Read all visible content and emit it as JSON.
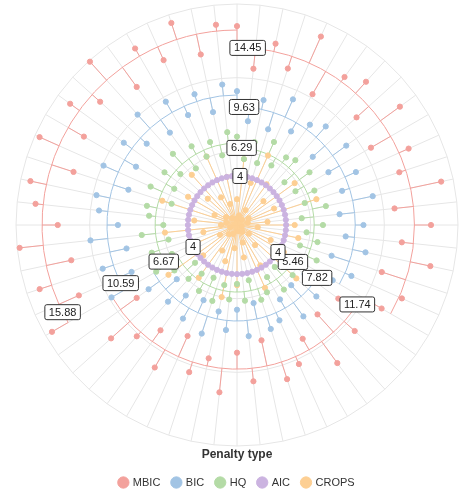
{
  "chart_data": {
    "type": "lollipop",
    "legend_title": "Penalty type",
    "legend": "bottom",
    "grid": true,
    "tick_labels": false,
    "ylim": [
      0,
      18
    ],
    "yticks": [
      0,
      6,
      12,
      18
    ],
    "categories": [
      null,
      null,
      null,
      null,
      null,
      null,
      null,
      null,
      null,
      null,
      null,
      null,
      null,
      null,
      null,
      null,
      null,
      null,
      null,
      null,
      null,
      null,
      null,
      null,
      null,
      null,
      null,
      null,
      null,
      null,
      null,
      null,
      null,
      null,
      null,
      null,
      null,
      null,
      null,
      null,
      null,
      null,
      null,
      null,
      null,
      null,
      null,
      null,
      null,
      null,
      null,
      null,
      null,
      null,
      null,
      null,
      null,
      null,
      null,
      null
    ],
    "series": [
      {
        "name": "MBIC",
        "color": "#f3a19c",
        "baselines": [
          14.45,
          11.74,
          15.88
        ],
        "values": [
          16.2,
          12.8,
          15.1,
          13.4,
          16.8,
          12.3,
          14.9,
          15.7,
          13.1,
          16.4,
          12.6,
          15.3,
          13.9,
          17.0,
          12.9,
          15.8,
          13.5,
          16.1,
          12.4,
          14.7,
          13.6,
          10.2,
          12.9,
          9.8,
          13.9,
          10.7,
          12.4,
          13.2,
          9.6,
          12.8,
          10.4,
          13.7,
          11.1,
          12.6,
          9.9,
          13.4,
          10.6,
          12.2,
          13.8,
          10.1,
          17.4,
          14.1,
          16.9,
          13.8,
          17.8,
          14.6,
          16.5,
          17.2,
          14.0,
          17.6,
          14.4,
          16.8,
          15.0,
          17.9,
          13.9,
          16.6,
          14.7,
          17.3,
          14.2,
          16.4
        ]
      },
      {
        "name": "BIC",
        "color": "#a2c4e4",
        "baselines": [
          9.63,
          7.82,
          10.59
        ],
        "values": [
          10.9,
          8.5,
          10.4,
          8.2,
          11.2,
          8.8,
          10.1,
          10.8,
          8.3,
          11.0,
          8.6,
          10.6,
          9.0,
          11.3,
          8.4,
          10.3,
          8.9,
          10.7,
          8.1,
          10.2,
          9.0,
          6.8,
          8.7,
          6.6,
          9.2,
          7.0,
          8.5,
          8.9,
          6.5,
          9.1,
          6.9,
          8.6,
          7.2,
          9.3,
          6.7,
          8.8,
          7.1,
          8.4,
          6.6,
          8.9,
          11.8,
          9.4,
          11.5,
          9.2,
          12.0,
          9.7,
          11.3,
          11.7,
          9.3,
          11.9,
          9.5,
          11.4,
          9.9,
          12.1,
          9.3,
          11.6,
          9.8,
          11.2,
          9.4,
          11.5
        ]
      },
      {
        "name": "HQ",
        "color": "#b4dba6",
        "baselines": [
          6.29,
          5.46,
          6.67
        ],
        "values": [
          7.2,
          5.4,
          6.9,
          5.3,
          7.4,
          5.6,
          6.8,
          7.1,
          5.2,
          7.3,
          5.5,
          6.9,
          5.8,
          7.4,
          5.3,
          7.0,
          5.7,
          6.7,
          5.4,
          7.1,
          6.3,
          4.7,
          6.1,
          4.6,
          6.5,
          4.9,
          6.0,
          6.4,
          4.6,
          6.2,
          4.8,
          6.1,
          5.0,
          6.5,
          4.7,
          6.2,
          4.9,
          5.9,
          4.6,
          6.3,
          7.6,
          5.8,
          7.3,
          5.7,
          7.8,
          6.0,
          7.2,
          7.5,
          5.6,
          7.7,
          5.9,
          7.3,
          6.2,
          7.8,
          5.7,
          7.4,
          6.1,
          7.1,
          5.8,
          7.6
        ]
      },
      {
        "name": "AIC",
        "color": "#cbb3e0",
        "baselines": [
          4,
          4,
          4
        ],
        "values": [
          4,
          4,
          4,
          4,
          4,
          4,
          4,
          4,
          4,
          4,
          4,
          4,
          4,
          4,
          4,
          4,
          4,
          4,
          4,
          4,
          4,
          4,
          4,
          4,
          4,
          4,
          4,
          4,
          4,
          4,
          4,
          4,
          4,
          4,
          4,
          4,
          4,
          4,
          4,
          4,
          4,
          4,
          4,
          4,
          4,
          4,
          4,
          4,
          4,
          4,
          4,
          4,
          4,
          4,
          4,
          4,
          4,
          4,
          4,
          4
        ]
      },
      {
        "name": "CROPS",
        "color": "#fdcf93",
        "values": [
          2.1,
          5.4,
          0.8,
          3.6,
          6.2,
          1.4,
          4.1,
          0.6,
          2.9,
          5.8,
          1.1,
          3.3,
          6.8,
          0.9,
          2.5,
          4.7,
          1.7,
          5.1,
          0.4,
          3.0,
          4.4,
          1.2,
          6.5,
          2.2,
          0.7,
          3.8,
          5.6,
          1.5,
          2.7,
          0.5,
          4.9,
          1.9,
          6.0,
          3.1,
          0.8,
          2.4,
          5.3,
          1.0,
          3.7,
          6.9,
          1.6,
          4.2,
          0.6,
          2.8,
          5.9,
          1.3,
          3.5,
          0.9,
          6.4,
          2.0,
          4.6,
          1.1,
          3.2,
          5.5,
          0.7,
          2.6,
          6.1,
          1.8,
          4.0,
          0.5
        ]
      }
    ]
  }
}
